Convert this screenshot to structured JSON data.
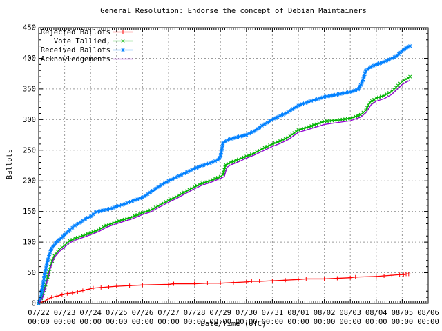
{
  "title": "General Resolution: Endorse the concept of Debian Maintainers",
  "axes": {
    "y_label": "Ballots",
    "x_label": "Date/Time (UTC)",
    "y_ticks": [
      0,
      50,
      100,
      150,
      200,
      250,
      300,
      350,
      400,
      450
    ],
    "x_ticks": [
      {
        "date": "07/22",
        "time": "00:00"
      },
      {
        "date": "07/23",
        "time": "00:00"
      },
      {
        "date": "07/24",
        "time": "00:00"
      },
      {
        "date": "07/25",
        "time": "00:00"
      },
      {
        "date": "07/26",
        "time": "00:00"
      },
      {
        "date": "07/27",
        "time": "00:00"
      },
      {
        "date": "07/28",
        "time": "00:00"
      },
      {
        "date": "07/29",
        "time": "00:00"
      },
      {
        "date": "07/30",
        "time": "00:00"
      },
      {
        "date": "07/31",
        "time": "00:00"
      },
      {
        "date": "08/01",
        "time": "00:00"
      },
      {
        "date": "08/02",
        "time": "00:00"
      },
      {
        "date": "08/03",
        "time": "00:00"
      },
      {
        "date": "08/04",
        "time": "00:00"
      },
      {
        "date": "08/05",
        "time": "00:00"
      },
      {
        "date": "08/06",
        "time": "00:00"
      }
    ]
  },
  "legend": [
    {
      "label": "Rejected Ballots",
      "marker": "plus",
      "color": "#ff0000"
    },
    {
      "label": "Vote Tallied,",
      "marker": "cross",
      "color": "#00b400"
    },
    {
      "label": "Received Ballots",
      "marker": "star",
      "color": "#0080ff"
    },
    {
      "label": "Acknowledgements",
      "marker": "none",
      "color": "#9400d3"
    }
  ],
  "colors": {
    "background": "#ffffff",
    "border": "#000000",
    "grid": "#9a9a9a",
    "text": "#000000"
  },
  "chart_data": {
    "type": "line",
    "title": "General Resolution: Endorse the concept of Debian Maintainers",
    "xlabel": "Date/Time (UTC)",
    "ylabel": "Ballots",
    "ylim": [
      0,
      450
    ],
    "xlim_days": [
      0,
      15
    ],
    "x_unit": "days since 07/22 00:00 UTC",
    "x_range_labels": [
      "07/22 00:00",
      "08/06 00:00"
    ],
    "grid": true,
    "legend_position": "top-left",
    "series": [
      {
        "name": "Rejected Ballots",
        "color": "#ff0000",
        "marker": "plus",
        "marker_density": "sparse",
        "points": [
          [
            0,
            0
          ],
          [
            0.2,
            3
          ],
          [
            0.35,
            7
          ],
          [
            0.5,
            10
          ],
          [
            0.7,
            12
          ],
          [
            0.9,
            14
          ],
          [
            1.1,
            16
          ],
          [
            1.3,
            17
          ],
          [
            1.5,
            19
          ],
          [
            1.7,
            21
          ],
          [
            1.9,
            23
          ],
          [
            2.1,
            25
          ],
          [
            2.4,
            26
          ],
          [
            2.7,
            27
          ],
          [
            3,
            28
          ],
          [
            3.5,
            29
          ],
          [
            4,
            30
          ],
          [
            5,
            31
          ],
          [
            5.2,
            32
          ],
          [
            6,
            32
          ],
          [
            6.5,
            33
          ],
          [
            7,
            33
          ],
          [
            7.5,
            34
          ],
          [
            8,
            35
          ],
          [
            8.2,
            36
          ],
          [
            8.5,
            36
          ],
          [
            9,
            37
          ],
          [
            9.5,
            38
          ],
          [
            10,
            39
          ],
          [
            10.3,
            40
          ],
          [
            11,
            40
          ],
          [
            11.5,
            41
          ],
          [
            12,
            42
          ],
          [
            12.2,
            43
          ],
          [
            13,
            44
          ],
          [
            13.3,
            45
          ],
          [
            13.6,
            46
          ],
          [
            13.9,
            47
          ],
          [
            14.05,
            47
          ],
          [
            14.15,
            48
          ],
          [
            14.25,
            48
          ]
        ]
      },
      {
        "name": "Vote Tallied,",
        "color": "#00b400",
        "marker": "cross",
        "marker_density": "dense",
        "points": [
          [
            0,
            0
          ],
          [
            0.15,
            12
          ],
          [
            0.3,
            35
          ],
          [
            0.45,
            60
          ],
          [
            0.6,
            78
          ],
          [
            0.8,
            88
          ],
          [
            1,
            95
          ],
          [
            1.2,
            102
          ],
          [
            1.4,
            106
          ],
          [
            1.6,
            109
          ],
          [
            1.8,
            112
          ],
          [
            2,
            115
          ],
          [
            2.3,
            120
          ],
          [
            2.6,
            127
          ],
          [
            3,
            133
          ],
          [
            3.3,
            137
          ],
          [
            3.6,
            141
          ],
          [
            4,
            148
          ],
          [
            4.3,
            152
          ],
          [
            4.6,
            159
          ],
          [
            5,
            168
          ],
          [
            5.3,
            174
          ],
          [
            5.6,
            181
          ],
          [
            6,
            190
          ],
          [
            6.3,
            196
          ],
          [
            6.6,
            200
          ],
          [
            7,
            207
          ],
          [
            7.1,
            210
          ],
          [
            7.2,
            226
          ],
          [
            7.4,
            230
          ],
          [
            7.7,
            235
          ],
          [
            8,
            240
          ],
          [
            8.3,
            245
          ],
          [
            8.6,
            252
          ],
          [
            9,
            260
          ],
          [
            9.3,
            265
          ],
          [
            9.6,
            271
          ],
          [
            10,
            283
          ],
          [
            10.4,
            288
          ],
          [
            11,
            297
          ],
          [
            11.5,
            299
          ],
          [
            12,
            302
          ],
          [
            12.4,
            308
          ],
          [
            12.6,
            315
          ],
          [
            12.75,
            328
          ],
          [
            13,
            335
          ],
          [
            13.3,
            339
          ],
          [
            13.6,
            346
          ],
          [
            14,
            362
          ],
          [
            14.15,
            366
          ],
          [
            14.3,
            370
          ]
        ]
      },
      {
        "name": "Received Ballots",
        "color": "#0080ff",
        "marker": "star",
        "marker_density": "dense",
        "points": [
          [
            0,
            0
          ],
          [
            0.1,
            15
          ],
          [
            0.2,
            40
          ],
          [
            0.3,
            62
          ],
          [
            0.4,
            78
          ],
          [
            0.5,
            90
          ],
          [
            0.65,
            98
          ],
          [
            0.8,
            104
          ],
          [
            1,
            112
          ],
          [
            1.2,
            120
          ],
          [
            1.4,
            127
          ],
          [
            1.6,
            132
          ],
          [
            1.8,
            138
          ],
          [
            2,
            142
          ],
          [
            2.2,
            149
          ],
          [
            2.5,
            152
          ],
          [
            2.8,
            155
          ],
          [
            3,
            158
          ],
          [
            3.3,
            162
          ],
          [
            3.6,
            167
          ],
          [
            4,
            173
          ],
          [
            4.3,
            181
          ],
          [
            4.6,
            190
          ],
          [
            5,
            200
          ],
          [
            5.3,
            206
          ],
          [
            5.6,
            212
          ],
          [
            6,
            220
          ],
          [
            6.3,
            225
          ],
          [
            6.6,
            229
          ],
          [
            6.9,
            234
          ],
          [
            7,
            240
          ],
          [
            7.1,
            262
          ],
          [
            7.3,
            267
          ],
          [
            7.6,
            271
          ],
          [
            8,
            275
          ],
          [
            8.3,
            281
          ],
          [
            8.6,
            290
          ],
          [
            9,
            300
          ],
          [
            9.3,
            306
          ],
          [
            9.6,
            312
          ],
          [
            10,
            323
          ],
          [
            10.4,
            329
          ],
          [
            11,
            337
          ],
          [
            11.4,
            340
          ],
          [
            12,
            345
          ],
          [
            12.3,
            349
          ],
          [
            12.45,
            360
          ],
          [
            12.6,
            380
          ],
          [
            12.8,
            386
          ],
          [
            13,
            390
          ],
          [
            13.3,
            394
          ],
          [
            13.6,
            400
          ],
          [
            13.8,
            404
          ],
          [
            14,
            412
          ],
          [
            14.15,
            417
          ],
          [
            14.3,
            420
          ]
        ]
      },
      {
        "name": "Acknowledgements",
        "color": "#9400d3",
        "marker": "none",
        "marker_density": "none",
        "points": [
          [
            0,
            0
          ],
          [
            0.15,
            9
          ],
          [
            0.3,
            32
          ],
          [
            0.45,
            57
          ],
          [
            0.6,
            75
          ],
          [
            0.8,
            85
          ],
          [
            1,
            92
          ],
          [
            1.2,
            99
          ],
          [
            1.4,
            103
          ],
          [
            1.6,
            106
          ],
          [
            1.8,
            109
          ],
          [
            2,
            112
          ],
          [
            2.3,
            117
          ],
          [
            2.6,
            124
          ],
          [
            3,
            130
          ],
          [
            3.3,
            134
          ],
          [
            3.6,
            138
          ],
          [
            4,
            145
          ],
          [
            4.3,
            149
          ],
          [
            4.6,
            156
          ],
          [
            5,
            165
          ],
          [
            5.3,
            171
          ],
          [
            5.6,
            178
          ],
          [
            6,
            187
          ],
          [
            6.3,
            193
          ],
          [
            6.6,
            197
          ],
          [
            7,
            204
          ],
          [
            7.15,
            207
          ],
          [
            7.25,
            222
          ],
          [
            7.4,
            226
          ],
          [
            7.7,
            231
          ],
          [
            8,
            237
          ],
          [
            8.3,
            242
          ],
          [
            8.6,
            248
          ],
          [
            9,
            256
          ],
          [
            9.3,
            261
          ],
          [
            9.6,
            267
          ],
          [
            10,
            279
          ],
          [
            10.4,
            284
          ],
          [
            11,
            292
          ],
          [
            11.5,
            295
          ],
          [
            12,
            298
          ],
          [
            12.4,
            304
          ],
          [
            12.6,
            311
          ],
          [
            12.8,
            324
          ],
          [
            13,
            330
          ],
          [
            13.3,
            334
          ],
          [
            13.6,
            341
          ],
          [
            14,
            357
          ],
          [
            14.15,
            361
          ],
          [
            14.3,
            364
          ]
        ]
      }
    ]
  }
}
